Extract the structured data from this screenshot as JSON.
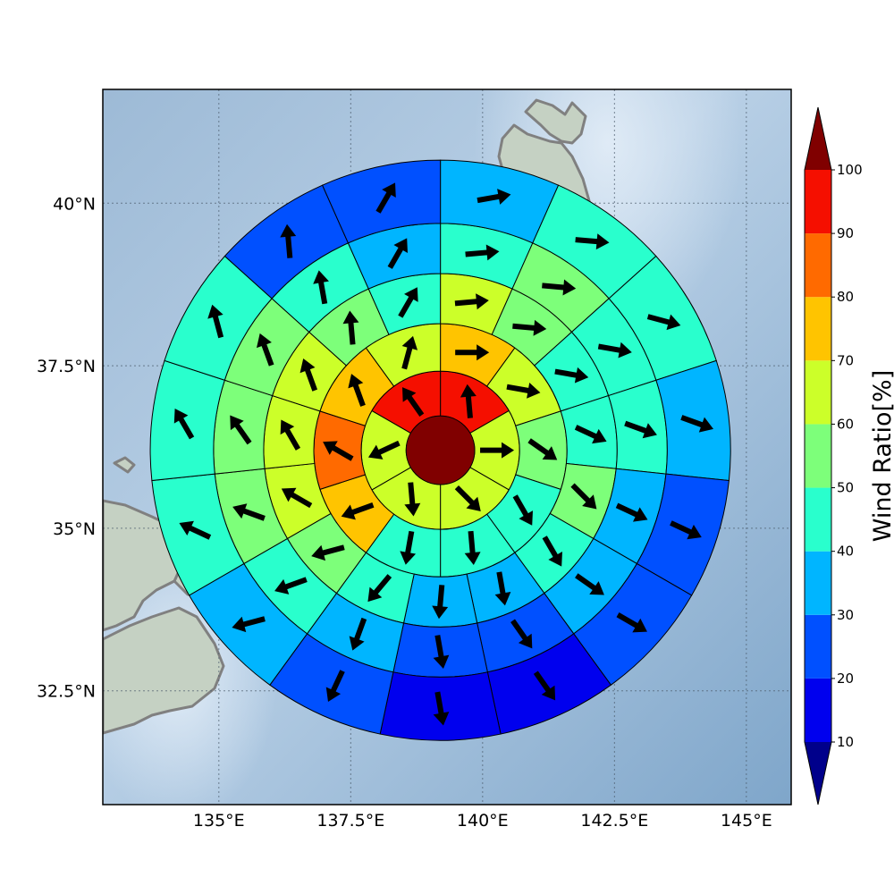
{
  "map": {
    "lon_range": [
      132.8,
      145.85
    ],
    "lat_range": [
      30.75,
      41.75
    ],
    "center": {
      "lon": 139.2,
      "lat": 36.2
    },
    "ring_radii_deg": [
      0.65,
      1.5,
      2.4,
      3.35,
      4.3,
      5.5
    ],
    "lon_ticks": [
      {
        "value": 135,
        "label": "135°E"
      },
      {
        "value": 137.5,
        "label": "137.5°E"
      },
      {
        "value": 140,
        "label": "140°E"
      },
      {
        "value": 142.5,
        "label": "142.5°E"
      },
      {
        "value": 145,
        "label": "145°E"
      }
    ],
    "lat_ticks": [
      {
        "value": 40,
        "label": "40°N"
      },
      {
        "value": 37.5,
        "label": "37.5°N"
      },
      {
        "value": 35,
        "label": "35°N"
      },
      {
        "value": 32.5,
        "label": "32.5°N"
      }
    ],
    "colors": {
      "ocean": "#8fb1d2",
      "coast": "#808080",
      "land": "#c7d2c4",
      "center_disc": "#800000",
      "arrow": "#000000"
    }
  },
  "colorbar": {
    "title": "Wind Ratio[%]",
    "ticks": [
      "10",
      "20",
      "30",
      "40",
      "50",
      "60",
      "70",
      "80",
      "90",
      "100"
    ],
    "levels": [
      {
        "from": 10,
        "to": 20,
        "color": "#0000ee"
      },
      {
        "from": 20,
        "to": 30,
        "color": "#0050ff"
      },
      {
        "from": 30,
        "to": 40,
        "color": "#00b5ff"
      },
      {
        "from": 40,
        "to": 50,
        "color": "#29ffcd"
      },
      {
        "from": 50,
        "to": 60,
        "color": "#7dff7a"
      },
      {
        "from": 60,
        "to": 70,
        "color": "#ccff29"
      },
      {
        "from": 70,
        "to": 80,
        "color": "#ffc400"
      },
      {
        "from": 80,
        "to": 90,
        "color": "#ff6a00"
      },
      {
        "from": 90,
        "to": 100,
        "color": "#f50f00"
      }
    ],
    "over_color": "#800000",
    "under_color": "#00008b"
  },
  "chart_data": {
    "type": "polar-grid-wind-field",
    "center_value": 100,
    "rings": [
      {
        "ring": 1,
        "sectors": [
          {
            "az": 0,
            "value": 98,
            "dir": 355
          },
          {
            "az": 60,
            "value": 65,
            "dir": 90
          },
          {
            "az": 120,
            "value": 65,
            "dir": 135
          },
          {
            "az": 180,
            "value": 65,
            "dir": 175
          },
          {
            "az": 240,
            "value": 65,
            "dir": 245
          },
          {
            "az": 300,
            "value": 98,
            "dir": 325
          }
        ]
      },
      {
        "ring": 2,
        "sectors": [
          {
            "az": 0,
            "value": 75,
            "dir": 90
          },
          {
            "az": 36,
            "value": 65,
            "dir": 100
          },
          {
            "az": 72,
            "value": 55,
            "dir": 125
          },
          {
            "az": 108,
            "value": 45,
            "dir": 150
          },
          {
            "az": 144,
            "value": 45,
            "dir": 175
          },
          {
            "az": 180,
            "value": 45,
            "dir": 190
          },
          {
            "az": 216,
            "value": 75,
            "dir": 250
          },
          {
            "az": 252,
            "value": 85,
            "dir": 300
          },
          {
            "az": 288,
            "value": 75,
            "dir": 340
          },
          {
            "az": 324,
            "value": 65,
            "dir": 15
          }
        ]
      },
      {
        "ring": 3,
        "sectors": [
          {
            "az": 0,
            "value": 65,
            "dir": 85
          },
          {
            "az": 24,
            "value": 55,
            "dir": 95
          },
          {
            "az": 48,
            "value": 45,
            "dir": 100
          },
          {
            "az": 72,
            "value": 45,
            "dir": 115
          },
          {
            "az": 96,
            "value": 55,
            "dir": 135
          },
          {
            "az": 120,
            "value": 45,
            "dir": 150
          },
          {
            "az": 144,
            "value": 35,
            "dir": 170
          },
          {
            "az": 168,
            "value": 35,
            "dir": 185
          },
          {
            "az": 192,
            "value": 45,
            "dir": 220
          },
          {
            "az": 216,
            "value": 55,
            "dir": 255
          },
          {
            "az": 240,
            "value": 65,
            "dir": 300
          },
          {
            "az": 264,
            "value": 65,
            "dir": 330
          },
          {
            "az": 288,
            "value": 65,
            "dir": 340
          },
          {
            "az": 312,
            "value": 55,
            "dir": 355
          },
          {
            "az": 336,
            "value": 45,
            "dir": 30
          }
        ]
      },
      {
        "ring": 4,
        "sectors": [
          {
            "az": 0,
            "value": 45,
            "dir": 85
          },
          {
            "az": 24,
            "value": 55,
            "dir": 95
          },
          {
            "az": 48,
            "value": 45,
            "dir": 100
          },
          {
            "az": 72,
            "value": 45,
            "dir": 110
          },
          {
            "az": 96,
            "value": 35,
            "dir": 115
          },
          {
            "az": 120,
            "value": 35,
            "dir": 125
          },
          {
            "az": 144,
            "value": 25,
            "dir": 145
          },
          {
            "az": 168,
            "value": 25,
            "dir": 170
          },
          {
            "az": 192,
            "value": 35,
            "dir": 200
          },
          {
            "az": 216,
            "value": 45,
            "dir": 250
          },
          {
            "az": 240,
            "value": 55,
            "dir": 290
          },
          {
            "az": 264,
            "value": 55,
            "dir": 325
          },
          {
            "az": 288,
            "value": 55,
            "dir": 340
          },
          {
            "az": 312,
            "value": 45,
            "dir": 350
          },
          {
            "az": 336,
            "value": 35,
            "dir": 30
          }
        ]
      },
      {
        "ring": 5,
        "sectors": [
          {
            "az": 0,
            "value": 35,
            "dir": 80
          },
          {
            "az": 24,
            "value": 45,
            "dir": 95
          },
          {
            "az": 48,
            "value": 45,
            "dir": 105
          },
          {
            "az": 72,
            "value": 35,
            "dir": 110
          },
          {
            "az": 96,
            "value": 25,
            "dir": 115
          },
          {
            "az": 120,
            "value": 25,
            "dir": 120
          },
          {
            "az": 144,
            "value": 15,
            "dir": 145
          },
          {
            "az": 168,
            "value": 15,
            "dir": 170
          },
          {
            "az": 192,
            "value": 25,
            "dir": 205
          },
          {
            "az": 216,
            "value": 35,
            "dir": 255
          },
          {
            "az": 240,
            "value": 45,
            "dir": 295
          },
          {
            "az": 264,
            "value": 45,
            "dir": 330
          },
          {
            "az": 288,
            "value": 45,
            "dir": 345
          },
          {
            "az": 312,
            "value": 25,
            "dir": 355
          },
          {
            "az": 336,
            "value": 25,
            "dir": 30
          }
        ]
      }
    ]
  }
}
